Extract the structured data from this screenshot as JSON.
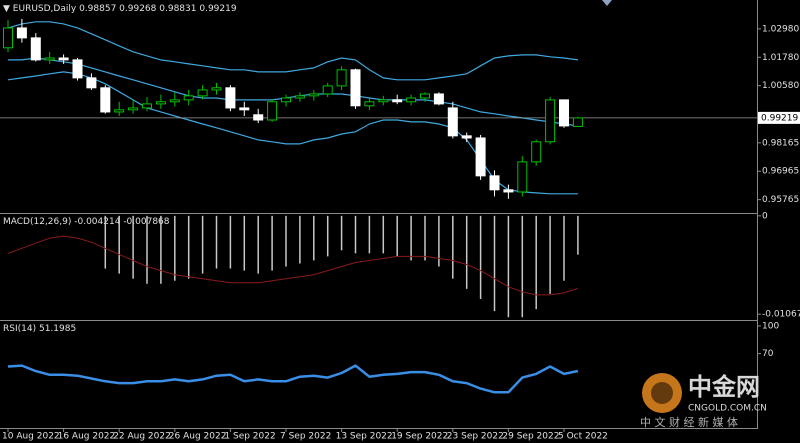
{
  "chart_data": [
    {
      "type": "candlestick",
      "title": "EURUSD,Daily",
      "open": [
        1.0218,
        1.0302,
        1.026,
        1.0167,
        1.0175,
        1.0167,
        1.0091,
        1.0049,
        0.9947,
        0.9956,
        0.9964,
        0.9981,
        0.999,
        0.9998,
        1.0015,
        1.004,
        1.0049,
        0.9964,
        0.9935,
        0.9913,
        0.999,
        1.0006,
        1.0015,
        1.0023,
        1.0057,
        1.0125,
        0.9973,
        0.999,
        0.9998,
        0.999,
        1.0006,
        1.0023,
        0.9964,
        0.9846,
        0.9837,
        0.9677,
        0.9618,
        0.9609,
        0.9736,
        0.9821,
        0.9998,
        0.98857
      ],
      "high": [
        1.0336,
        1.034,
        1.028,
        1.02,
        1.019,
        1.0175,
        1.011,
        1.006,
        0.999,
        1.0,
        1.001,
        1.002,
        1.003,
        1.004,
        1.006,
        1.007,
        1.006,
        0.999,
        0.996,
        1.0,
        1.002,
        1.003,
        1.004,
        1.007,
        1.014,
        1.013,
        1.001,
        1.0015,
        1.002,
        1.002,
        1.003,
        1.003,
        0.999,
        0.986,
        0.985,
        0.97,
        0.964,
        0.976,
        0.983,
        1.001,
        1.0,
        0.99268
      ],
      "low": [
        1.02,
        1.024,
        1.016,
        1.015,
        1.015,
        1.008,
        1.004,
        0.994,
        0.993,
        0.994,
        0.995,
        0.996,
        0.997,
        0.9975,
        1.0,
        1.002,
        0.995,
        0.993,
        0.99,
        0.9905,
        0.997,
        0.999,
        0.9995,
        1.001,
        1.004,
        0.996,
        0.9955,
        0.9975,
        0.998,
        0.9975,
        0.999,
        0.9975,
        0.9835,
        0.982,
        0.966,
        0.959,
        0.958,
        0.959,
        0.972,
        0.981,
        0.988,
        0.98831
      ],
      "close": [
        1.0302,
        1.026,
        1.0167,
        1.0175,
        1.0167,
        1.0091,
        1.0049,
        0.9947,
        0.9956,
        0.9964,
        0.9981,
        0.999,
        0.9998,
        1.0015,
        1.004,
        1.0049,
        0.9964,
        0.9956,
        0.9913,
        0.999,
        1.0006,
        1.0015,
        1.0023,
        1.0057,
        1.0125,
        0.9973,
        0.999,
        0.9998,
        0.999,
        1.0006,
        1.0023,
        0.9981,
        0.9846,
        0.9837,
        0.9677,
        0.9618,
        0.9609,
        0.9736,
        0.9821,
        0.9998,
        0.9888,
        0.99219
      ],
      "up_color": "#00c000",
      "down_color": "#ffffff",
      "bands": [
        {
          "color": "#3fa9e0",
          "values": [
            1.0302,
            1.0319,
            1.0328,
            1.0328,
            1.0319,
            1.0302,
            1.0277,
            1.0252,
            1.0226,
            1.0201,
            1.0184,
            1.0167,
            1.0159,
            1.015,
            1.0142,
            1.0133,
            1.0125,
            1.0125,
            1.0116,
            1.0116,
            1.0116,
            1.0125,
            1.0133,
            1.0159,
            1.0175,
            1.0167,
            1.0125,
            1.0091,
            1.0083,
            1.0083,
            1.0083,
            1.0091,
            1.0099,
            1.0108,
            1.0142,
            1.0175,
            1.0184,
            1.0188,
            1.0188,
            1.018,
            1.0175,
            1.0167
          ]
        },
        {
          "color": "#3fa9e0",
          "values": [
            1.0167,
            1.0167,
            1.0175,
            1.0167,
            1.0159,
            1.015,
            1.0133,
            1.0116,
            1.0099,
            1.0083,
            1.0066,
            1.0049,
            1.0032,
            1.0015,
            1.0006,
            1.0006,
            0.9998,
            0.9998,
            0.9998,
            0.9998,
            1.0006,
            1.0015,
            1.0023,
            1.0023,
            1.0023,
            1.0015,
            1.0006,
            0.9998,
            0.9998,
            0.9998,
            0.9998,
            0.999,
            0.9981,
            0.9964,
            0.9947,
            0.9939,
            0.993,
            0.9922,
            0.9913,
            0.9905,
            0.9896,
            0.9888
          ]
        },
        {
          "color": "#3fa9e0",
          "values": [
            1.0083,
            1.0091,
            1.0099,
            1.0108,
            1.0116,
            1.0108,
            1.0091,
            1.0066,
            1.0032,
            0.9998,
            0.9964,
            0.9947,
            0.993,
            0.9913,
            0.9896,
            0.988,
            0.9863,
            0.9846,
            0.9829,
            0.9821,
            0.9812,
            0.9812,
            0.9829,
            0.9837,
            0.9854,
            0.9863,
            0.9896,
            0.9913,
            0.9913,
            0.9905,
            0.9905,
            0.9896,
            0.988,
            0.9829,
            0.9745,
            0.966,
            0.9618,
            0.9609,
            0.9605,
            0.9601,
            0.9601,
            0.9601
          ]
        }
      ],
      "ylim": [
        0.952,
        1.042
      ],
      "yticks": [
        {
          "value": 1.0298,
          "label": "1.02980"
        },
        {
          "value": 1.0178,
          "label": "1.01780"
        },
        {
          "value": 1.0058,
          "label": "1.00580"
        },
        0.98165,
        0.96965,
        0.95765
      ]
    },
    {
      "type": "macd",
      "title": "MACD(12,26,9)",
      "color": "#c8c8c8",
      "values": [
        null,
        null,
        null,
        null,
        null,
        null,
        null,
        -0.00572,
        -0.00627,
        -0.00682,
        -0.00737,
        -0.00737,
        -0.00704,
        -0.00682,
        -0.00627,
        -0.00572,
        -0.00572,
        -0.00594,
        -0.00627,
        -0.00594,
        -0.0055,
        -0.00517,
        -0.00484,
        -0.0044,
        -0.00374,
        -0.00407,
        -0.00407,
        -0.00407,
        -0.0044,
        -0.00484,
        -0.00484,
        -0.0055,
        -0.00682,
        -0.00792,
        -0.00902,
        -0.01034,
        -0.011,
        -0.011,
        -0.01012,
        -0.00847,
        -0.00704,
        -0.004214
      ],
      "signal": {
        "color": "#8b1a1a",
        "values": [
          -0.00407,
          -0.00352,
          -0.00297,
          -0.00242,
          -0.0022,
          -0.00242,
          -0.00286,
          -0.00352,
          -0.00418,
          -0.00484,
          -0.0055,
          -0.00594,
          -0.00638,
          -0.0066,
          -0.00682,
          -0.00704,
          -0.00726,
          -0.00726,
          -0.00726,
          -0.00704,
          -0.00682,
          -0.0066,
          -0.00638,
          -0.00594,
          -0.0055,
          -0.00506,
          -0.00484,
          -0.00462,
          -0.0044,
          -0.0044,
          -0.0044,
          -0.00462,
          -0.00484,
          -0.00528,
          -0.00594,
          -0.00682,
          -0.0077,
          -0.00825,
          -0.00858,
          -0.00858,
          -0.00836,
          -0.007868
        ]
      },
      "ylim": [
        -0.0113,
        0.0002
      ],
      "yticks": [
        0,
        -0.01067
      ]
    },
    {
      "type": "line",
      "title": "RSI(14)",
      "color": "#3a8ee6",
      "categories": [
        "10 Aug 2022",
        null,
        null,
        null,
        "16 Aug 2022",
        null,
        null,
        null,
        "22 Aug 2022",
        null,
        null,
        null,
        "26 Aug 2022",
        null,
        null,
        null,
        "1 Sep 2022",
        null,
        null,
        null,
        "7 Sep 2022",
        null,
        null,
        null,
        "13 Sep 2022",
        null,
        null,
        null,
        "19 Sep 2022",
        null,
        null,
        null,
        "23 Sep 2022",
        null,
        null,
        null,
        "29 Sep 2022",
        null,
        null,
        null,
        "5 Oct 2022",
        null
      ],
      "values": [
        56,
        57,
        51,
        47,
        47,
        46,
        43,
        40,
        38,
        38,
        40,
        40,
        42,
        40,
        42,
        46,
        47,
        40,
        42,
        40,
        40,
        45,
        46,
        44,
        49,
        57,
        45,
        47,
        48,
        50,
        50,
        47,
        40,
        38,
        32,
        28,
        28,
        44,
        48,
        56,
        48,
        51.1985
      ],
      "ylim": [
        -10.7,
        105.4
      ],
      "yticks": [
        100,
        70
      ]
    }
  ],
  "watermark": {
    "brand": "中金网",
    "site": "CNGOLD.COM.CN",
    "slogan": "中 文 财 经 新 媒 体"
  }
}
